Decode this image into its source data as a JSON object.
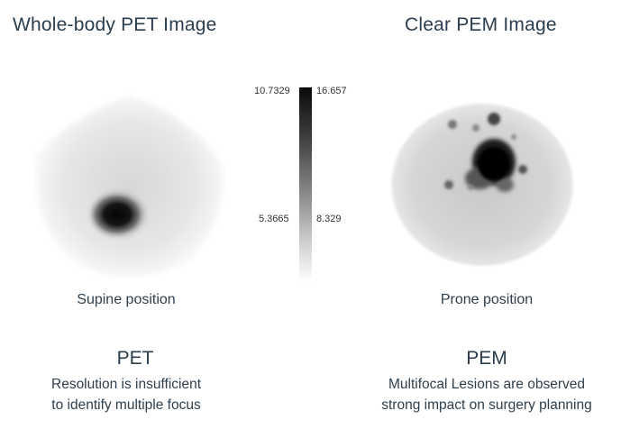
{
  "left_panel": {
    "title": "Whole-body PET Image",
    "position_label": "Supine position",
    "heading": "PET",
    "description_lines": [
      "Resolution is insufficient",
      "to identify multiple focus"
    ]
  },
  "right_panel": {
    "title": "Clear PEM Image",
    "position_label": "Prone position",
    "heading": "PEM",
    "description_lines": [
      "Multifocal Lesions are observed",
      "strong impact on surgery planning"
    ]
  },
  "colorbar": {
    "left_ticks": [
      "10.7329",
      "5.3665"
    ],
    "right_ticks": [
      "16.657",
      "8.329"
    ],
    "colors": [
      "#0a0a0a",
      "#ffffff"
    ]
  }
}
